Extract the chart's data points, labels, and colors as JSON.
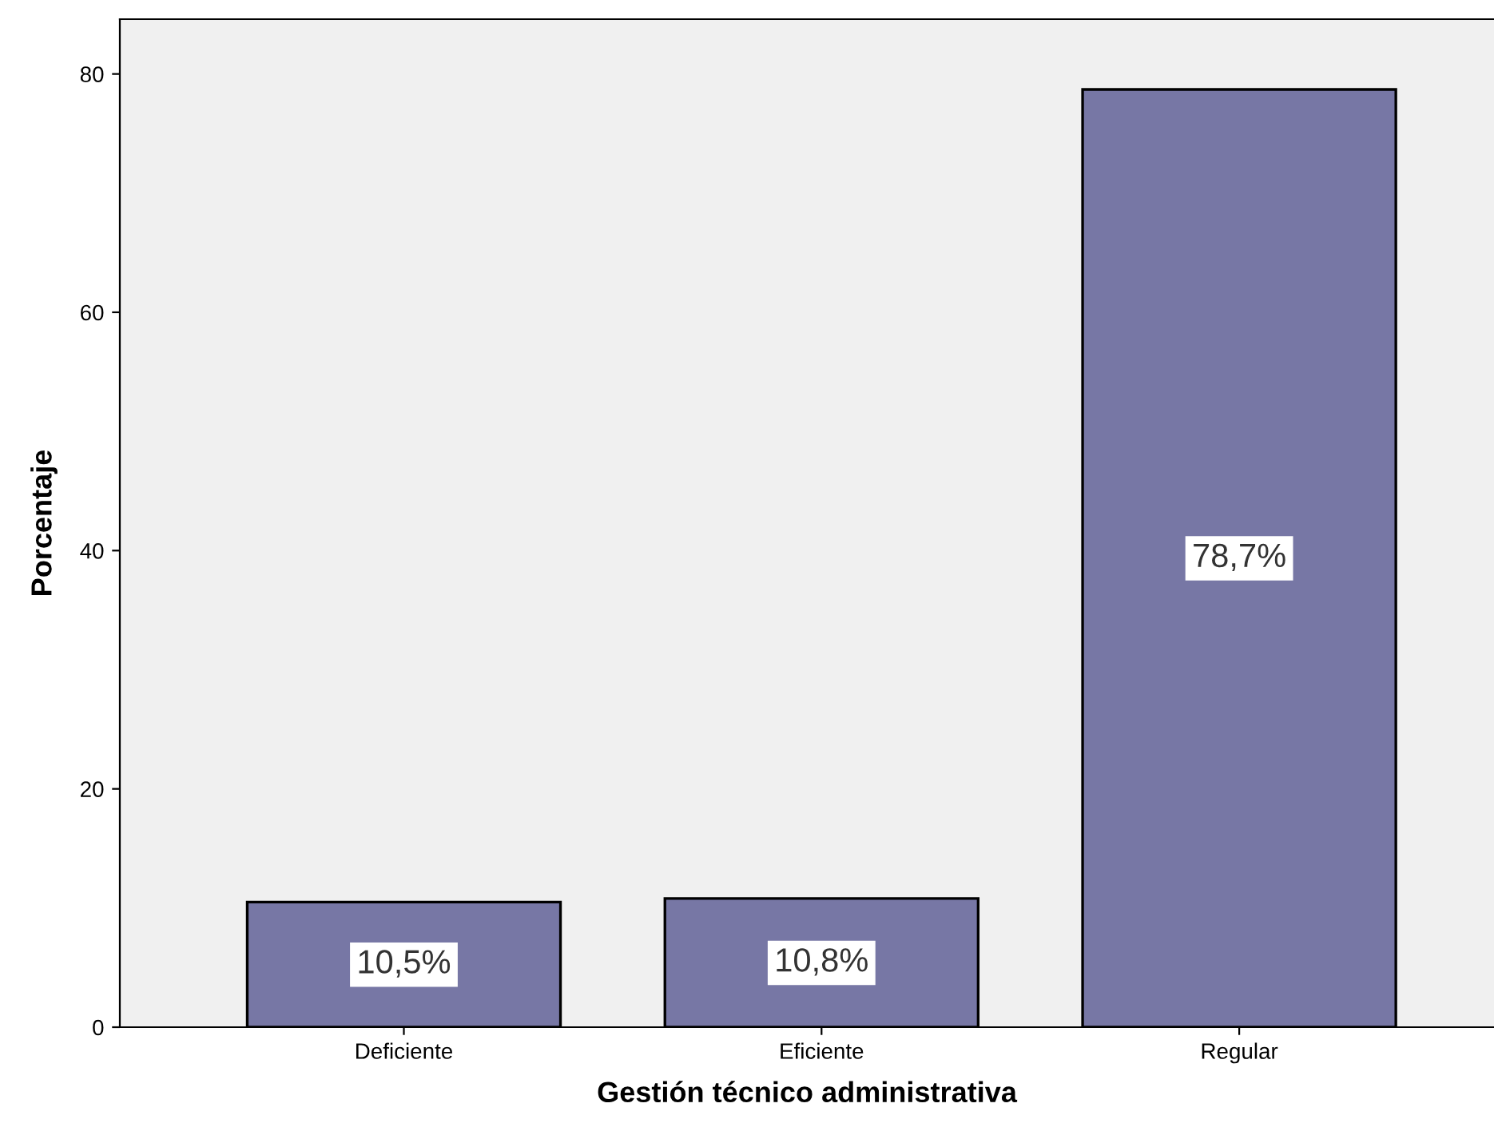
{
  "chart_data": {
    "type": "bar",
    "xlabel": "Gestión técnico administrativa",
    "ylabel": "Porcentaje",
    "categories": [
      "Deficiente",
      "Eficiente",
      "Regular"
    ],
    "values": [
      10.5,
      10.8,
      78.7
    ],
    "value_labels": [
      "10,5%",
      "10,8%",
      "78,7%"
    ],
    "color": "#7777a5",
    "ylim": [
      0,
      84.6
    ],
    "yticks": [
      0,
      20,
      40,
      60,
      80
    ],
    "grid": false
  }
}
